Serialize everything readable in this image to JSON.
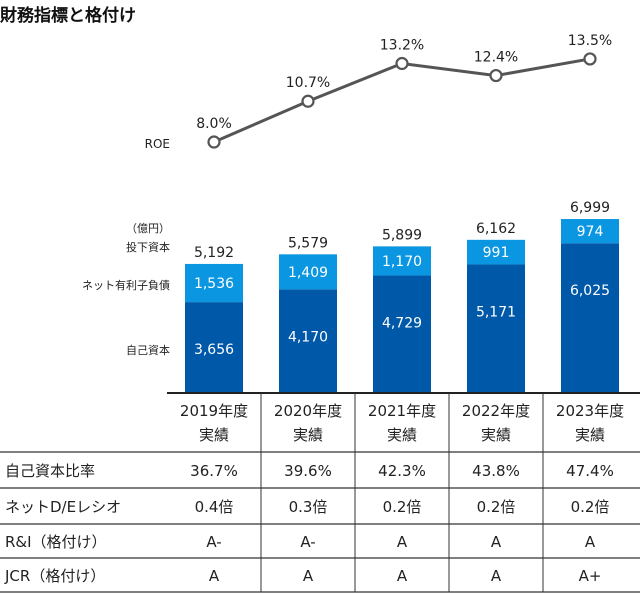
{
  "title": "財務指標と格付け",
  "colors": {
    "equity": "#0058a8",
    "net_debt": "#0a96e0",
    "roe_line": "#555555",
    "text": "#222222"
  },
  "chart_data": [
    {
      "type": "line",
      "series_label": "ROE",
      "categories": [
        "2019年度実績",
        "2020年度実績",
        "2021年度実績",
        "2022年度実績",
        "2023年度実績"
      ],
      "values": [
        8.0,
        10.7,
        13.2,
        12.4,
        13.5
      ],
      "data_labels": [
        "8.0%",
        "10.7%",
        "13.2%",
        "12.4%",
        "13.5%"
      ]
    },
    {
      "type": "bar",
      "stacked": true,
      "unit_label": "（億円）",
      "total_label": "投下資本",
      "categories": [
        "2019年度実績",
        "2020年度実績",
        "2021年度実績",
        "2022年度実績",
        "2023年度実績"
      ],
      "series": [
        {
          "name": "自己資本",
          "values": [
            3656,
            4170,
            4729,
            5171,
            6025
          ],
          "labels": [
            "3,656",
            "4,170",
            "4,729",
            "5,171",
            "6,025"
          ]
        },
        {
          "name": "ネット有利子負債",
          "values": [
            1536,
            1409,
            1170,
            991,
            974
          ],
          "labels": [
            "1,536",
            "1,409",
            "1,170",
            "991",
            "974"
          ]
        }
      ],
      "totals": [
        5192,
        5579,
        5899,
        6162,
        6999
      ],
      "total_labels": [
        "5,192",
        "5,579",
        "5,899",
        "6,162",
        "6,999"
      ]
    }
  ],
  "table": {
    "columns": [
      {
        "year": "2019年度",
        "sub": "実績"
      },
      {
        "year": "2020年度",
        "sub": "実績"
      },
      {
        "year": "2021年度",
        "sub": "実績"
      },
      {
        "year": "2022年度",
        "sub": "実績"
      },
      {
        "year": "2023年度",
        "sub": "実績"
      }
    ],
    "rows": [
      {
        "label": "自己資本比率",
        "values": [
          "36.7%",
          "39.6%",
          "42.3%",
          "43.8%",
          "47.4%"
        ]
      },
      {
        "label": "ネットD/Eレシオ",
        "values": [
          "0.4倍",
          "0.3倍",
          "0.2倍",
          "0.2倍",
          "0.2倍"
        ]
      },
      {
        "label": "R&I（格付け）",
        "values": [
          "A-",
          "A-",
          "A",
          "A",
          "A"
        ]
      },
      {
        "label": "JCR（格付け）",
        "values": [
          "A",
          "A",
          "A",
          "A",
          "A+"
        ]
      }
    ]
  }
}
